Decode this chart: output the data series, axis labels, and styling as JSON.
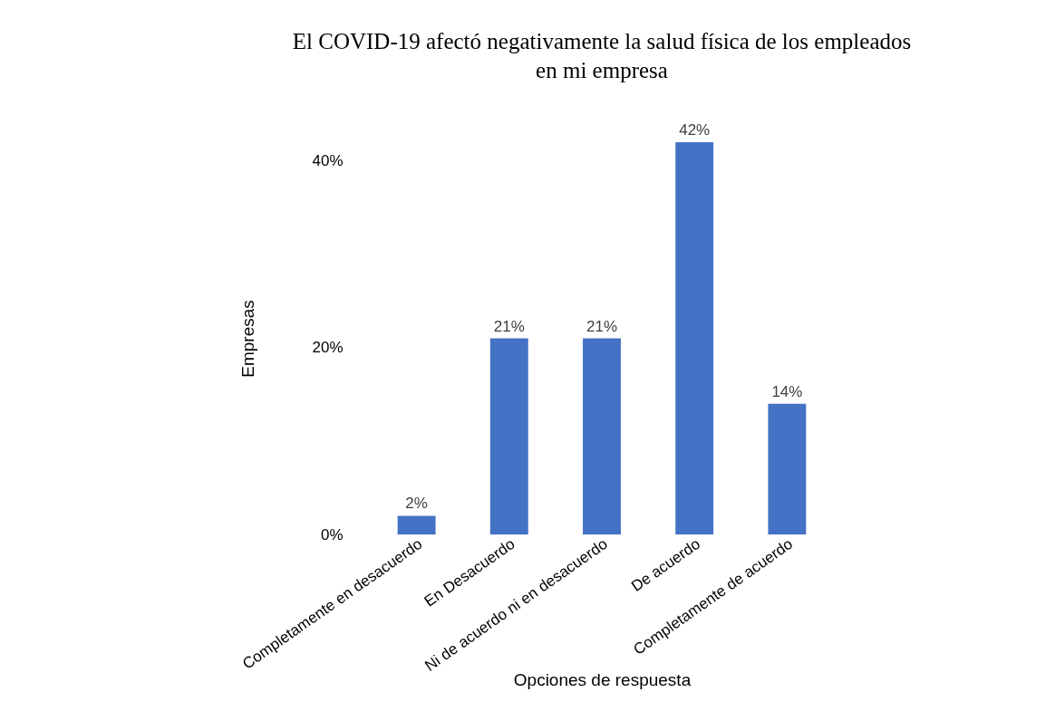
{
  "chart_data": {
    "type": "bar",
    "title": "El COVID-19 afectó negativamente la salud física de los empleados en mi empresa",
    "xlabel": "Opciones de respuesta",
    "ylabel": "Empresas",
    "categories": [
      "Completamente en desacuerdo",
      "En Desacuerdo",
      "Ni de acuerdo ni en desacuerdo",
      "De acuerdo",
      "Completamente de acuerdo"
    ],
    "values": [
      2,
      21,
      21,
      42,
      14
    ],
    "value_labels": [
      "2%",
      "21%",
      "21%",
      "42%",
      "14%"
    ],
    "color": "#4472c4",
    "ylim": [
      0,
      42
    ],
    "yticks": [
      {
        "value": 0,
        "label": "0%"
      },
      {
        "value": 20,
        "label": "20%"
      },
      {
        "value": 40,
        "label": "40%"
      }
    ],
    "grid": false
  }
}
